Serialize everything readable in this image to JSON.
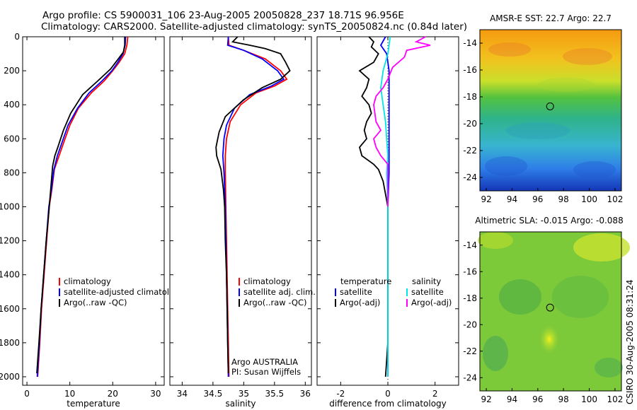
{
  "title_line1": "Argo profile: CS 5900031_106 23-Aug-2005 20050828_237 18.71S 96.956E",
  "title_line2": "Climatology: CARS2000. Satellite-adjusted climatology: synTS_20050824.nc (0.84d later)",
  "side_label": "CSIRO 30-Aug-2005 08:31:24",
  "credit_line1": "Argo AUSTRALIA",
  "credit_line2": "PI: Susan Wijffels",
  "colors": {
    "climatology": "#ff0000",
    "satellite": "#0000ff",
    "argo": "#000000",
    "satellite_sal": "#00e5e5",
    "argo_sal": "#ff00ff"
  },
  "chart_data": [
    {
      "type": "line",
      "xlabel": "temperature",
      "xlim": [
        -1,
        32
      ],
      "ylim": [
        2050,
        0
      ],
      "xticks": [
        "0",
        "10",
        "20",
        "30"
      ],
      "yticks": [
        "0",
        "200",
        "400",
        "600",
        "800",
        "1000",
        "1200",
        "1400",
        "1600",
        "1800",
        "2000"
      ],
      "legend": [
        "climatology",
        "satellite-adjusted climatology",
        "Argo(..raw -QC)"
      ],
      "series": [
        {
          "name": "climatology",
          "color": "#ff0000",
          "points": [
            [
              23.5,
              0
            ],
            [
              23.3,
              50
            ],
            [
              22.8,
              100
            ],
            [
              21.5,
              150
            ],
            [
              20,
              200
            ],
            [
              18,
              260
            ],
            [
              15,
              330
            ],
            [
              12,
              420
            ],
            [
              10,
              520
            ],
            [
              8.6,
              620
            ],
            [
              7.5,
              700
            ],
            [
              6.4,
              780
            ],
            [
              5.8,
              900
            ],
            [
              5.2,
              1000
            ],
            [
              4.6,
              1200
            ],
            [
              4,
              1400
            ],
            [
              3.4,
              1600
            ],
            [
              3,
              1800
            ],
            [
              2.5,
              2000
            ]
          ]
        },
        {
          "name": "satellite-adjusted climatology",
          "color": "#0000ff",
          "points": [
            [
              23,
              0
            ],
            [
              22.9,
              50
            ],
            [
              22.4,
              100
            ],
            [
              21.2,
              150
            ],
            [
              19.8,
              200
            ],
            [
              17.5,
              260
            ],
            [
              14.5,
              330
            ],
            [
              11.8,
              420
            ],
            [
              9.6,
              520
            ],
            [
              8.2,
              620
            ],
            [
              7.1,
              700
            ],
            [
              6.3,
              780
            ],
            [
              5.7,
              900
            ],
            [
              5.1,
              1000
            ],
            [
              4.5,
              1200
            ],
            [
              3.9,
              1400
            ],
            [
              3.3,
              1600
            ],
            [
              2.9,
              1800
            ],
            [
              2.4,
              2000
            ]
          ]
        },
        {
          "name": "Argo(..raw -QC)",
          "color": "#000000",
          "points": [
            [
              22.8,
              0
            ],
            [
              22.8,
              50
            ],
            [
              22.5,
              90
            ],
            [
              21,
              140
            ],
            [
              19.5,
              190
            ],
            [
              16.5,
              260
            ],
            [
              13,
              340
            ],
            [
              10.2,
              450
            ],
            [
              8.5,
              550
            ],
            [
              7.2,
              650
            ],
            [
              6.5,
              700
            ],
            [
              6,
              760
            ],
            [
              5.7,
              850
            ],
            [
              5.2,
              1000
            ],
            [
              4.5,
              1200
            ],
            [
              3.9,
              1400
            ],
            [
              3.3,
              1600
            ],
            [
              2.8,
              1800
            ],
            [
              2.3,
              1980
            ]
          ]
        }
      ]
    },
    {
      "type": "line",
      "xlabel": "salinity",
      "xlim": [
        33.8,
        36.1
      ],
      "ylim": [
        2050,
        0
      ],
      "xticks": [
        "34",
        "34.5",
        "35",
        "35.5",
        "36"
      ],
      "legend": [
        "climatology",
        "satellite adj. clim.",
        "Argo(..raw -QC)"
      ],
      "series": [
        {
          "name": "climatology",
          "color": "#ff0000",
          "points": [
            [
              34.75,
              0
            ],
            [
              34.76,
              50
            ],
            [
              35,
              80
            ],
            [
              35.35,
              130
            ],
            [
              35.6,
              200
            ],
            [
              35.7,
              250
            ],
            [
              35.5,
              290
            ],
            [
              35.2,
              330
            ],
            [
              34.95,
              400
            ],
            [
              34.78,
              500
            ],
            [
              34.72,
              600
            ],
            [
              34.7,
              700
            ],
            [
              34.7,
              800
            ],
            [
              34.71,
              1000
            ],
            [
              34.72,
              1200
            ],
            [
              34.73,
              1400
            ],
            [
              34.74,
              1600
            ],
            [
              34.75,
              1800
            ],
            [
              34.76,
              2000
            ]
          ]
        },
        {
          "name": "satellite adj. clim.",
          "color": "#0000ff",
          "points": [
            [
              34.75,
              0
            ],
            [
              34.74,
              50
            ],
            [
              35,
              80
            ],
            [
              35.3,
              130
            ],
            [
              35.55,
              200
            ],
            [
              35.65,
              250
            ],
            [
              35.45,
              290
            ],
            [
              35.1,
              340
            ],
            [
              34.85,
              420
            ],
            [
              34.72,
              520
            ],
            [
              34.68,
              600
            ],
            [
              34.66,
              700
            ],
            [
              34.68,
              800
            ],
            [
              34.7,
              1000
            ],
            [
              34.71,
              1200
            ],
            [
              34.72,
              1400
            ],
            [
              34.73,
              1600
            ],
            [
              34.74,
              1800
            ],
            [
              34.75,
              2000
            ]
          ]
        },
        {
          "name": "Argo(..raw -QC)",
          "color": "#000000",
          "points": [
            [
              34.9,
              0
            ],
            [
              34.82,
              30
            ],
            [
              35.1,
              50
            ],
            [
              35.35,
              70
            ],
            [
              35.6,
              100
            ],
            [
              35.68,
              150
            ],
            [
              35.75,
              200
            ],
            [
              35.6,
              250
            ],
            [
              35.3,
              300
            ],
            [
              35,
              370
            ],
            [
              34.7,
              470
            ],
            [
              34.6,
              560
            ],
            [
              34.55,
              650
            ],
            [
              34.56,
              700
            ],
            [
              34.63,
              780
            ],
            [
              34.67,
              900
            ],
            [
              34.69,
              1000
            ],
            [
              34.7,
              1200
            ],
            [
              34.72,
              1400
            ],
            [
              34.73,
              1600
            ],
            [
              34.74,
              1800
            ],
            [
              34.75,
              1980
            ]
          ]
        }
      ]
    },
    {
      "type": "line",
      "xlabel": "difference from climatology",
      "xlim": [
        -3,
        3
      ],
      "ylim": [
        2050,
        0
      ],
      "xticks": [
        "-2",
        "0",
        "2"
      ],
      "legend_left": [
        "temperature",
        "satellite",
        "Argo(-adj)"
      ],
      "legend_right": [
        "salinity",
        "satellite",
        "Argo(-adj)"
      ],
      "series": [
        {
          "name": "temperature satellite",
          "color": "#0000ff",
          "points": [
            [
              -0.1,
              0
            ],
            [
              -0.3,
              50
            ],
            [
              -0.05,
              100
            ],
            [
              0.05,
              200
            ],
            [
              0.05,
              400
            ],
            [
              0.05,
              600
            ],
            [
              0.05,
              800
            ],
            [
              0,
              1000
            ],
            [
              0,
              1400
            ],
            [
              0,
              2000
            ]
          ]
        },
        {
          "name": "temperature Argo(-adj)",
          "color": "#000000",
          "points": [
            [
              -0.8,
              0
            ],
            [
              -0.6,
              30
            ],
            [
              -0.7,
              60
            ],
            [
              -0.4,
              100
            ],
            [
              -0.6,
              150
            ],
            [
              -1.2,
              200
            ],
            [
              -0.8,
              250
            ],
            [
              -0.9,
              300
            ],
            [
              -1.1,
              350
            ],
            [
              -0.8,
              400
            ],
            [
              -0.7,
              450
            ],
            [
              -0.9,
              500
            ],
            [
              -1,
              550
            ],
            [
              -0.9,
              600
            ],
            [
              -1.2,
              650
            ],
            [
              -1.1,
              700
            ],
            [
              -0.6,
              750
            ],
            [
              -0.4,
              780
            ],
            [
              -0.2,
              850
            ],
            [
              0,
              1000
            ],
            [
              0,
              1400
            ],
            [
              0,
              1800
            ],
            [
              -0.1,
              2000
            ]
          ]
        },
        {
          "name": "salinity satellite",
          "color": "#00e5e5",
          "points": [
            [
              0.1,
              0
            ],
            [
              0,
              100
            ],
            [
              -0.2,
              200
            ],
            [
              -0.3,
              300
            ],
            [
              -0.2,
              400
            ],
            [
              -0.1,
              500
            ],
            [
              -0.05,
              600
            ],
            [
              0,
              700
            ],
            [
              -0.05,
              800
            ],
            [
              0,
              1000
            ],
            [
              0,
              1400
            ],
            [
              0,
              2000
            ]
          ]
        },
        {
          "name": "salinity Argo(-adj)",
          "color": "#ff00ff",
          "points": [
            [
              1.6,
              0
            ],
            [
              1.2,
              30
            ],
            [
              1.8,
              50
            ],
            [
              0.8,
              80
            ],
            [
              0.7,
              120
            ],
            [
              0.2,
              180
            ],
            [
              0,
              250
            ],
            [
              -0.2,
              300
            ],
            [
              -0.5,
              350
            ],
            [
              -0.6,
              400
            ],
            [
              -0.5,
              500
            ],
            [
              -0.3,
              550
            ],
            [
              -0.6,
              600
            ],
            [
              -0.5,
              650
            ],
            [
              -0.3,
              700
            ],
            [
              0,
              750
            ],
            [
              0,
              800
            ],
            [
              0,
              1000
            ]
          ]
        }
      ]
    },
    {
      "type": "heatmap",
      "title": "AMSR-E SST: 22.7  Argo: 22.7",
      "xlim": [
        91.5,
        102.5
      ],
      "ylim": [
        -25,
        -13
      ],
      "xticks": [
        "92",
        "94",
        "96",
        "98",
        "100",
        "102"
      ],
      "yticks": [
        "-14",
        "-16",
        "-18",
        "-20",
        "-22",
        "-24"
      ],
      "marker": [
        96.956,
        -18.71
      ]
    },
    {
      "type": "heatmap",
      "title": "Altimetric SLA: -0.015  Argo: -0.088",
      "xlim": [
        91.5,
        102.5
      ],
      "ylim": [
        -25,
        -13
      ],
      "xticks": [
        "92",
        "94",
        "96",
        "98",
        "100",
        "102"
      ],
      "yticks": [
        "-14",
        "-16",
        "-18",
        "-20",
        "-22",
        "-24"
      ],
      "marker": [
        96.956,
        -18.71
      ]
    }
  ]
}
